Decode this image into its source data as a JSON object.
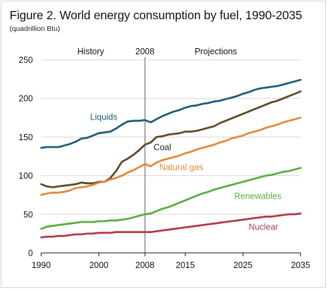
{
  "chart_data": {
    "type": "line",
    "title": "Figure 2. World energy consumption by fuel, 1990-2035",
    "subtitle": "(quadrillion Btu)",
    "xlabel": "",
    "ylabel": "",
    "xlim": [
      1990,
      2035
    ],
    "ylim": [
      0,
      250
    ],
    "x_ticks": [
      1990,
      2000,
      2008,
      2015,
      2025,
      2035
    ],
    "y_ticks": [
      0,
      50,
      100,
      150,
      200,
      250
    ],
    "grid": "horizontal",
    "legend": "inline labels",
    "annotations": {
      "history": "History",
      "divider_year_label": "2008",
      "projections": "Projections",
      "divider_year": 2008
    },
    "series": [
      {
        "name": "Liquids",
        "color": "#1f5a7a",
        "label_color": "#1f5a7a",
        "label_at": [
          1998.5,
          172
        ],
        "points": [
          [
            1990,
            136
          ],
          [
            1991,
            137
          ],
          [
            1992,
            137
          ],
          [
            1993,
            137
          ],
          [
            1994,
            139
          ],
          [
            1995,
            141
          ],
          [
            1996,
            144
          ],
          [
            1997,
            148
          ],
          [
            1998,
            149
          ],
          [
            1999,
            152
          ],
          [
            2000,
            155
          ],
          [
            2001,
            156
          ],
          [
            2002,
            157
          ],
          [
            2003,
            161
          ],
          [
            2004,
            166
          ],
          [
            2005,
            170
          ],
          [
            2006,
            171
          ],
          [
            2007,
            171
          ],
          [
            2008,
            172
          ],
          [
            2009,
            169
          ],
          [
            2010,
            173
          ],
          [
            2011,
            177
          ],
          [
            2012,
            180
          ],
          [
            2013,
            183
          ],
          [
            2014,
            185
          ],
          [
            2015,
            188
          ],
          [
            2016,
            190
          ],
          [
            2017,
            191
          ],
          [
            2018,
            193
          ],
          [
            2019,
            194
          ],
          [
            2020,
            196
          ],
          [
            2021,
            197
          ],
          [
            2022,
            199
          ],
          [
            2023,
            201
          ],
          [
            2024,
            203
          ],
          [
            2025,
            206
          ],
          [
            2026,
            208
          ],
          [
            2027,
            211
          ],
          [
            2028,
            213
          ],
          [
            2029,
            214
          ],
          [
            2030,
            215
          ],
          [
            2031,
            216
          ],
          [
            2032,
            218
          ],
          [
            2033,
            220
          ],
          [
            2034,
            222
          ],
          [
            2035,
            224
          ]
        ]
      },
      {
        "name": "Coal",
        "color": "#5b4a24",
        "label_color": "#222222",
        "label_at": [
          2009.5,
          133
        ],
        "points": [
          [
            1990,
            89
          ],
          [
            1991,
            86
          ],
          [
            1992,
            85
          ],
          [
            1993,
            86
          ],
          [
            1994,
            87
          ],
          [
            1995,
            88
          ],
          [
            1996,
            89
          ],
          [
            1997,
            91
          ],
          [
            1998,
            90
          ],
          [
            1999,
            90
          ],
          [
            2000,
            92
          ],
          [
            2001,
            92
          ],
          [
            2002,
            97
          ],
          [
            2003,
            106
          ],
          [
            2004,
            118
          ],
          [
            2005,
            122
          ],
          [
            2006,
            127
          ],
          [
            2007,
            133
          ],
          [
            2008,
            140
          ],
          [
            2009,
            143
          ],
          [
            2010,
            150
          ],
          [
            2011,
            151
          ],
          [
            2012,
            153
          ],
          [
            2013,
            154
          ],
          [
            2014,
            155
          ],
          [
            2015,
            157
          ],
          [
            2016,
            157
          ],
          [
            2017,
            158
          ],
          [
            2018,
            160
          ],
          [
            2019,
            162
          ],
          [
            2020,
            164
          ],
          [
            2021,
            168
          ],
          [
            2022,
            171
          ],
          [
            2023,
            174
          ],
          [
            2024,
            177
          ],
          [
            2025,
            180
          ],
          [
            2026,
            183
          ],
          [
            2027,
            186
          ],
          [
            2028,
            189
          ],
          [
            2029,
            192
          ],
          [
            2030,
            195
          ],
          [
            2031,
            197
          ],
          [
            2032,
            200
          ],
          [
            2033,
            203
          ],
          [
            2034,
            206
          ],
          [
            2035,
            209
          ]
        ]
      },
      {
        "name": "Natural gas",
        "color": "#e0893b",
        "label_color": "#e0893b",
        "label_at": [
          2010.5,
          107
        ],
        "points": [
          [
            1990,
            75
          ],
          [
            1991,
            77
          ],
          [
            1992,
            78
          ],
          [
            1993,
            78
          ],
          [
            1994,
            79
          ],
          [
            1995,
            81
          ],
          [
            1996,
            84
          ],
          [
            1997,
            85
          ],
          [
            1998,
            86
          ],
          [
            1999,
            88
          ],
          [
            2000,
            91
          ],
          [
            2001,
            92
          ],
          [
            2002,
            95
          ],
          [
            2003,
            97
          ],
          [
            2004,
            100
          ],
          [
            2005,
            104
          ],
          [
            2006,
            107
          ],
          [
            2007,
            111
          ],
          [
            2008,
            115
          ],
          [
            2009,
            112
          ],
          [
            2010,
            117
          ],
          [
            2011,
            120
          ],
          [
            2012,
            122
          ],
          [
            2013,
            124
          ],
          [
            2014,
            126
          ],
          [
            2015,
            129
          ],
          [
            2016,
            131
          ],
          [
            2017,
            134
          ],
          [
            2018,
            136
          ],
          [
            2019,
            138
          ],
          [
            2020,
            140
          ],
          [
            2021,
            143
          ],
          [
            2022,
            145
          ],
          [
            2023,
            148
          ],
          [
            2024,
            150
          ],
          [
            2025,
            152
          ],
          [
            2026,
            155
          ],
          [
            2027,
            157
          ],
          [
            2028,
            159
          ],
          [
            2029,
            162
          ],
          [
            2030,
            164
          ],
          [
            2031,
            166
          ],
          [
            2032,
            169
          ],
          [
            2033,
            171
          ],
          [
            2034,
            173
          ],
          [
            2035,
            175
          ]
        ]
      },
      {
        "name": "Renewables",
        "color": "#5aad3c",
        "label_color": "#5aad3c",
        "label_at": [
          2023.5,
          70
        ],
        "points": [
          [
            1990,
            31
          ],
          [
            1991,
            34
          ],
          [
            1992,
            35
          ],
          [
            1993,
            36
          ],
          [
            1994,
            37
          ],
          [
            1995,
            38
          ],
          [
            1996,
            39
          ],
          [
            1997,
            40
          ],
          [
            1998,
            40
          ],
          [
            1999,
            40
          ],
          [
            2000,
            41
          ],
          [
            2001,
            41
          ],
          [
            2002,
            42
          ],
          [
            2003,
            42
          ],
          [
            2004,
            43
          ],
          [
            2005,
            44
          ],
          [
            2006,
            46
          ],
          [
            2007,
            48
          ],
          [
            2008,
            50
          ],
          [
            2009,
            51
          ],
          [
            2010,
            54
          ],
          [
            2011,
            57
          ],
          [
            2012,
            59
          ],
          [
            2013,
            62
          ],
          [
            2014,
            65
          ],
          [
            2015,
            68
          ],
          [
            2016,
            71
          ],
          [
            2017,
            74
          ],
          [
            2018,
            77
          ],
          [
            2019,
            79
          ],
          [
            2020,
            82
          ],
          [
            2021,
            84
          ],
          [
            2022,
            86
          ],
          [
            2023,
            88
          ],
          [
            2024,
            90
          ],
          [
            2025,
            92
          ],
          [
            2026,
            94
          ],
          [
            2027,
            96
          ],
          [
            2028,
            98
          ],
          [
            2029,
            100
          ],
          [
            2030,
            101
          ],
          [
            2031,
            103
          ],
          [
            2032,
            105
          ],
          [
            2033,
            106
          ],
          [
            2034,
            108
          ],
          [
            2035,
            110
          ]
        ]
      },
      {
        "name": "Nuclear",
        "color": "#b03a48",
        "label_color": "#b03a48",
        "label_at": [
          2026,
          30
        ],
        "points": [
          [
            1990,
            20
          ],
          [
            1991,
            21
          ],
          [
            1992,
            21
          ],
          [
            1993,
            22
          ],
          [
            1994,
            22
          ],
          [
            1995,
            23
          ],
          [
            1996,
            24
          ],
          [
            1997,
            24
          ],
          [
            1998,
            25
          ],
          [
            1999,
            25
          ],
          [
            2000,
            26
          ],
          [
            2001,
            26
          ],
          [
            2002,
            26
          ],
          [
            2003,
            27
          ],
          [
            2004,
            27
          ],
          [
            2005,
            27
          ],
          [
            2006,
            27
          ],
          [
            2007,
            27
          ],
          [
            2008,
            27
          ],
          [
            2009,
            27
          ],
          [
            2010,
            28
          ],
          [
            2011,
            29
          ],
          [
            2012,
            30
          ],
          [
            2013,
            31
          ],
          [
            2014,
            32
          ],
          [
            2015,
            33
          ],
          [
            2016,
            34
          ],
          [
            2017,
            35
          ],
          [
            2018,
            36
          ],
          [
            2019,
            37
          ],
          [
            2020,
            38
          ],
          [
            2021,
            39
          ],
          [
            2022,
            40
          ],
          [
            2023,
            41
          ],
          [
            2024,
            42
          ],
          [
            2025,
            43
          ],
          [
            2026,
            44
          ],
          [
            2027,
            45
          ],
          [
            2028,
            46
          ],
          [
            2029,
            47
          ],
          [
            2030,
            47
          ],
          [
            2031,
            48
          ],
          [
            2032,
            49
          ],
          [
            2033,
            50
          ],
          [
            2034,
            50
          ],
          [
            2035,
            51
          ]
        ]
      }
    ]
  }
}
